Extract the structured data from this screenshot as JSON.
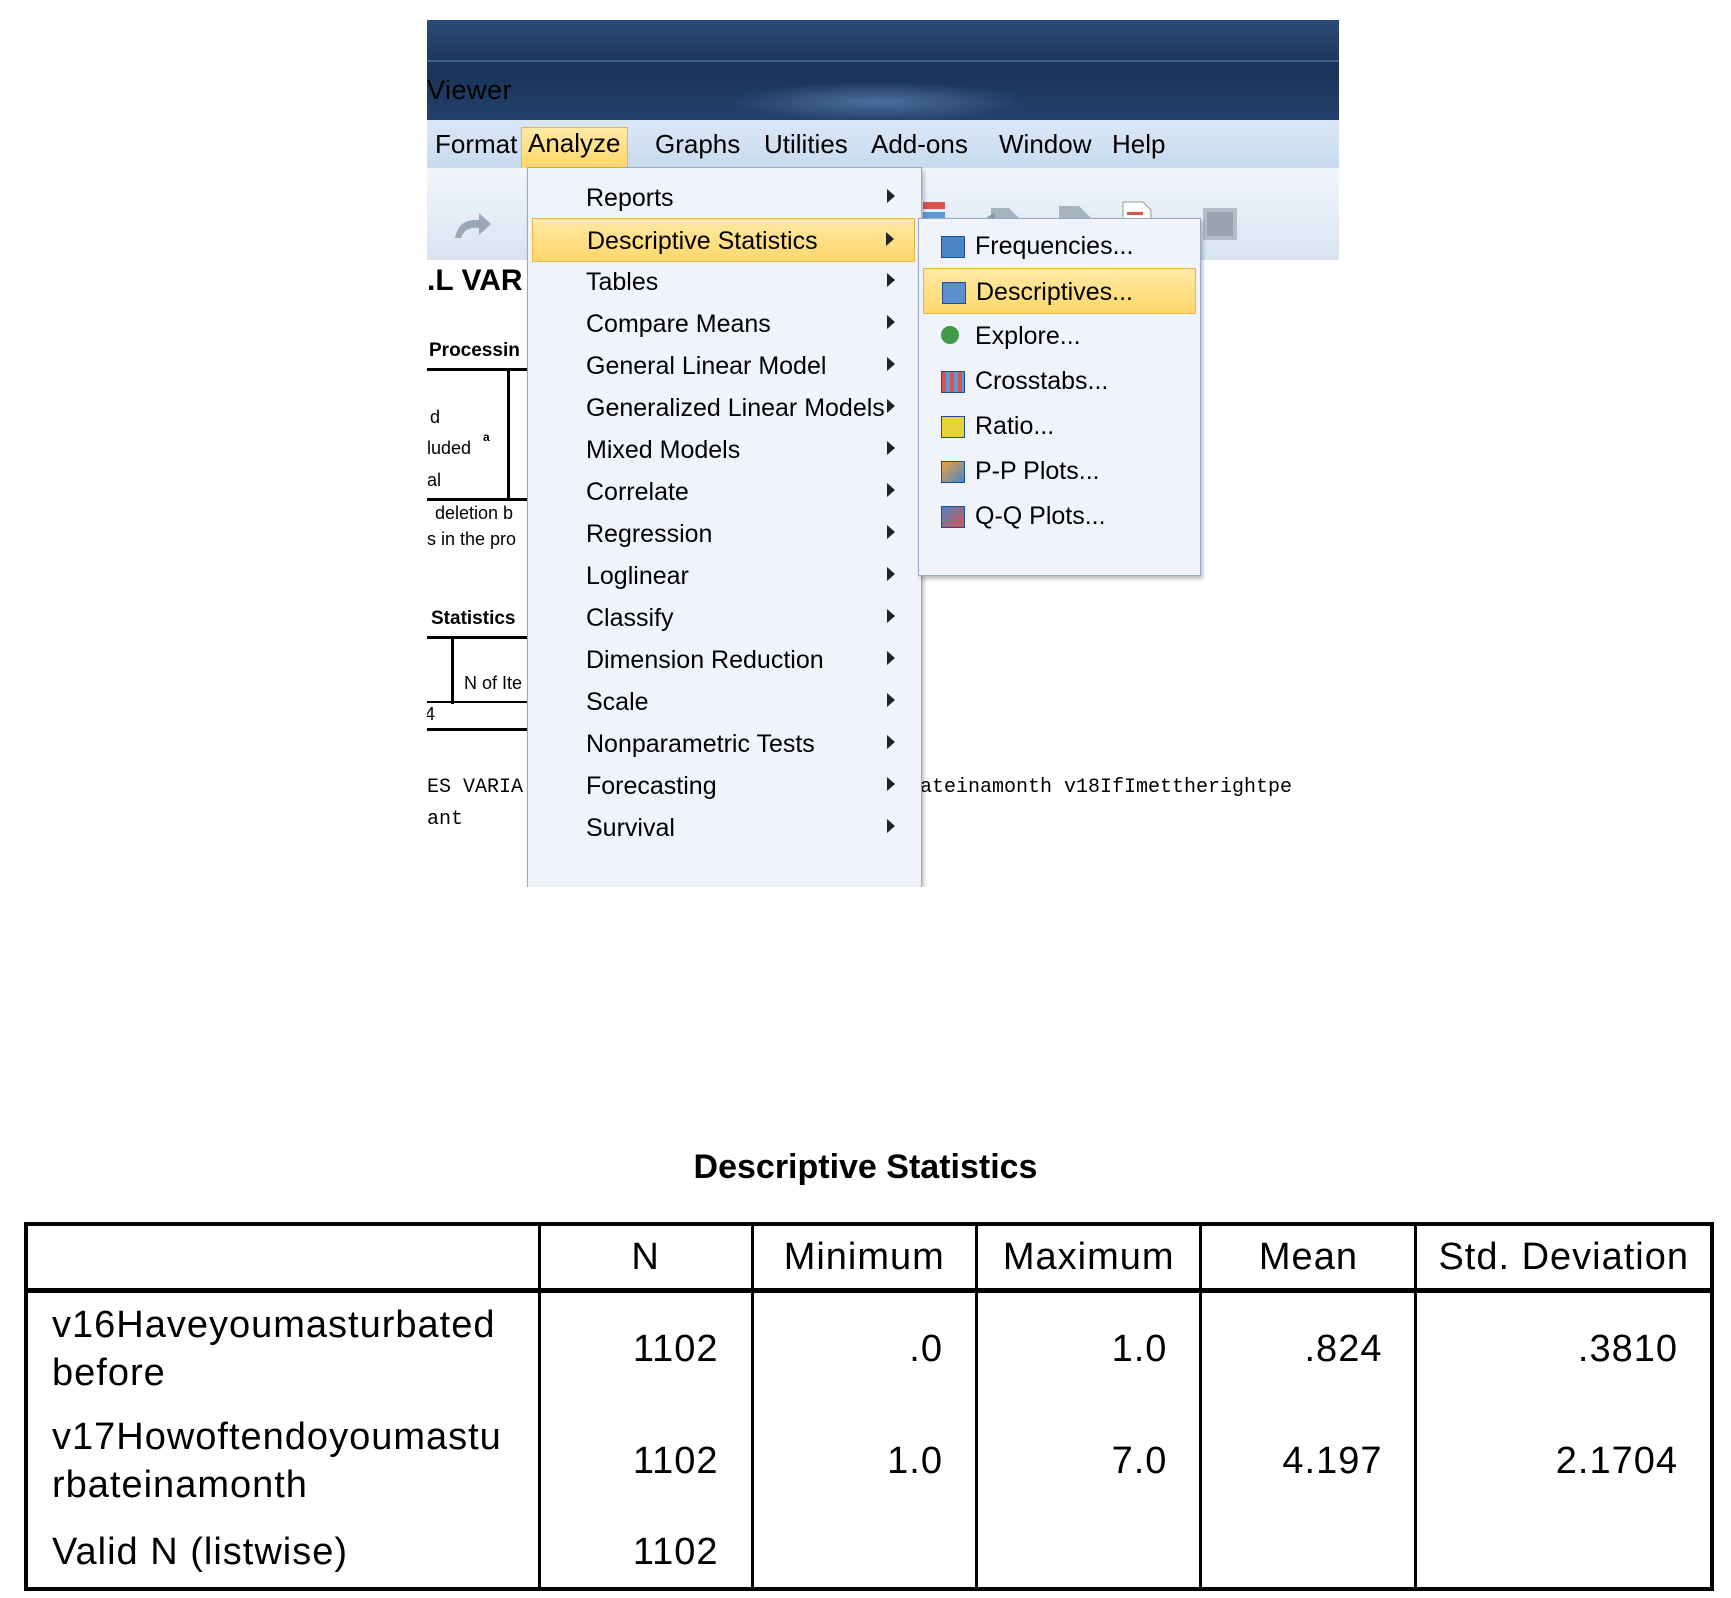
{
  "window": {
    "title": "Viewer"
  },
  "menubar": [
    "Format",
    "Analyze",
    "Graphs",
    "Utilities",
    "Add-ons",
    "Window",
    "Help"
  ],
  "document": {
    "heading": ".L VAR",
    "processing": "Processin",
    "rows": [
      "d",
      "luded",
      "al"
    ],
    "superscript": "a",
    "note1": "deletion b",
    "note2": "s in the pro",
    "statistics": "Statistics",
    "n_items": "N of Ite",
    "four": "4",
    "syntax1_left": "ES VARIA",
    "syntax1_right": "ateinamonth v18IfImettherightpe",
    "syntax2": "ant"
  },
  "analyze_menu": [
    "Reports",
    "Descriptive Statistics",
    "Tables",
    "Compare Means",
    "General Linear Model",
    "Generalized Linear Models",
    "Mixed Models",
    "Correlate",
    "Regression",
    "Loglinear",
    "Classify",
    "Dimension Reduction",
    "Scale",
    "Nonparametric Tests",
    "Forecasting",
    "Survival"
  ],
  "descriptive_submenu": [
    "Frequencies...",
    "Descriptives...",
    "Explore...",
    "Crosstabs...",
    "Ratio...",
    "P-P Plots...",
    "Q-Q Plots..."
  ],
  "output": {
    "title": "Descriptive Statistics",
    "headers": [
      "",
      "N",
      "Minimum",
      "Maximum",
      "Mean",
      "Std. Deviation"
    ],
    "rows": [
      {
        "label1": "v16Haveyoumasturbated",
        "label2": "before",
        "n": "1102",
        "min": ".0",
        "max": "1.0",
        "mean": ".824",
        "sd": ".3810"
      },
      {
        "label1": "v17Howoftendoyoumastu",
        "label2": "rbateinamonth",
        "n": "1102",
        "min": "1.0",
        "max": "7.0",
        "mean": "4.197",
        "sd": "2.1704"
      },
      {
        "label1": "Valid N (listwise)",
        "label2": "",
        "n": "1102",
        "min": "",
        "max": "",
        "mean": "",
        "sd": ""
      }
    ]
  },
  "colors": {
    "highlight": "#ffd76a",
    "menu_bg": "#f0f4fa",
    "titlebar": "#1f3a60"
  }
}
